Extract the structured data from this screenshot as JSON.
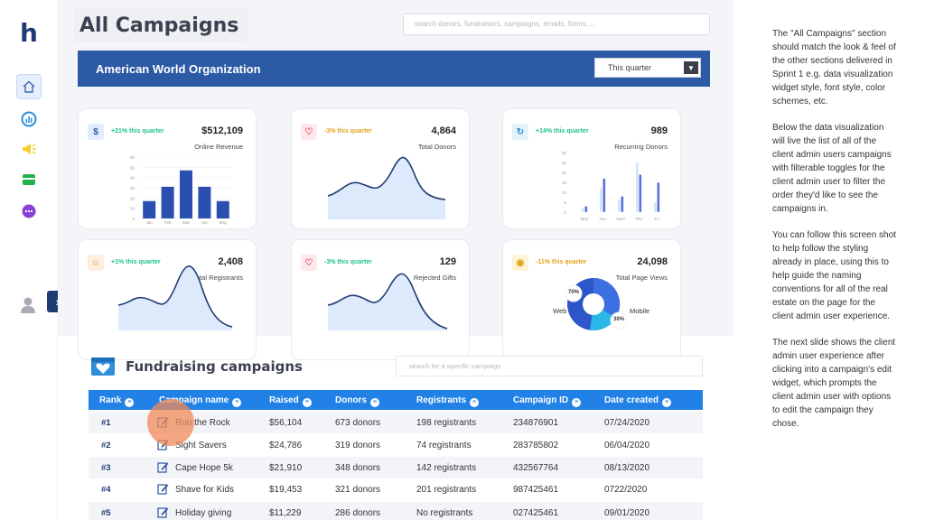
{
  "brand": {
    "logo": "h"
  },
  "nav": {
    "icons": [
      "home-icon",
      "analytics-icon",
      "megaphone-icon",
      "card-icon",
      "more-icon"
    ],
    "expand_label": "›"
  },
  "header": {
    "title": "All Campaigns",
    "search_placeholder": "search donors, fundraisers, campaigns, emails, forms....."
  },
  "org": {
    "name": "American World Organization",
    "period": "This quarter"
  },
  "cards": [
    {
      "change": "+21% this quarter",
      "value": "$512,109",
      "label": "Online Revenue",
      "icon": "$",
      "color": "#1ec28b"
    },
    {
      "change": "-3% this quarter",
      "value": "4,864",
      "label": "Total Donors",
      "icon": "♡",
      "color": "#e2a31b"
    },
    {
      "change": "+14% this quarter",
      "value": "989",
      "label": "Recurring Donors",
      "icon": "↻",
      "color": "#1ec28b"
    },
    {
      "change": "+1% this  quarter",
      "value": "2,408",
      "label": "Total Registrants",
      "icon": "☺",
      "color": "#1ec28b"
    },
    {
      "change": "-3% this quarter",
      "value": "129",
      "label": "Rejected Gifts",
      "icon": "♡",
      "color": "#1ec28b"
    },
    {
      "change": "-11% this quarter",
      "value": "24,098",
      "label": "Total Page Views",
      "icon": "◉",
      "color": "#e2a31b"
    }
  ],
  "chart_data": [
    {
      "type": "bar",
      "categories": [
        "Jan",
        "Feb",
        "Mar",
        "Apr",
        "May"
      ],
      "values": [
        17,
        31,
        47,
        31,
        17
      ],
      "ylim": [
        0,
        60
      ],
      "yticks": [
        "0",
        "10",
        "20",
        "30",
        "40",
        "50",
        "60"
      ]
    },
    {
      "type": "area",
      "categories": [
        "Mon",
        "Tue",
        "Wed",
        "Thu",
        "Fri"
      ],
      "series": [
        {
          "values": [
            2,
            12,
            6,
            25,
            5
          ],
          "color": "#cfe2ff"
        },
        {
          "values": [
            3,
            17,
            8,
            19,
            15
          ],
          "color": "#5b6fd8"
        }
      ],
      "ylim": [
        0,
        30
      ],
      "yticks": [
        "0",
        "5",
        "10",
        "15",
        "20",
        "25",
        "30"
      ]
    }
  ],
  "pie": {
    "web_label": "Web",
    "mobile_label": "Mobile",
    "web_pct": "70%",
    "mobile_pct": "30%"
  },
  "fundraising": {
    "title": "Fundraising campaigns",
    "search_placeholder": "search for a specific campaign",
    "columns": [
      "Rank",
      "Campaign name",
      "Raised",
      "Donors",
      "Registrants",
      "Campaign ID",
      "Date created"
    ],
    "rows": [
      {
        "rank": "#1",
        "name": "Run the Rock",
        "raised": "$56,104",
        "donors": "673 donors",
        "registrants": "198 registrants",
        "id": "234876901",
        "date": "07/24/2020"
      },
      {
        "rank": "#2",
        "name": "Sight Savers",
        "raised": "$24,786",
        "donors": "319 donors",
        "registrants": "74 registrants",
        "id": "283785802",
        "date": "06/04/2020"
      },
      {
        "rank": "#3",
        "name": "Cape Hope 5k",
        "raised": "$21,910",
        "donors": "348 donors",
        "registrants": "142 registrants",
        "id": "432567764",
        "date": "08/13/2020"
      },
      {
        "rank": "#4",
        "name": "Shave for Kids",
        "raised": "$19,453",
        "donors": "321 donors",
        "registrants": "201 registrants",
        "id": "987425461",
        "date": "0722/2020"
      },
      {
        "rank": "#5",
        "name": "Holiday giving",
        "raised": "$11,229",
        "donors": "286 donors",
        "registrants": "No registrants",
        "id": "027425461",
        "date": "09/01/2020"
      }
    ]
  },
  "notes": [
    "The \"All Campaigns\" section should match the look & feel of the other sections delivered in Sprint 1 e.g. data visualization widget style, font style, color schemes, etc.",
    "Below the data visualization will live the list of all of the client admin users campaigns with filterable toggles for the client admin user to filter the order they'd like to see the campaigns in.",
    "You can follow this screen shot to help follow the styling already in place, using this to help guide the naming conventions for all of the real estate on the page for the client admin user experience.",
    "The next slide shows the client admin user experience after clicking into a campaign's edit widget, which prompts the client admin user with options to edit the campaign they chose."
  ]
}
